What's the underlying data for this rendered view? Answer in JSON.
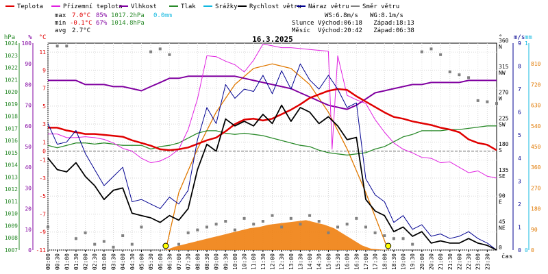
{
  "legend": [
    {
      "label": "Teplota",
      "color": "#e00000"
    },
    {
      "label": "Přízemní teplota",
      "color": "#e020e0"
    },
    {
      "label": "Vlhkost",
      "color": "#8000a0"
    },
    {
      "label": "Tlak",
      "color": "#2a8a2a"
    },
    {
      "label": "Srážky",
      "color": "#10b8e0"
    },
    {
      "label": "Rychlost větru",
      "color": "#000000"
    },
    {
      "label": "Náraz větru",
      "color": "#000090"
    },
    {
      "label": "Směr větru",
      "color": "#808080"
    }
  ],
  "stats": {
    "max": {
      "label": "max",
      "temp": "7.0°C",
      "hum": "85%",
      "press": "1017.2hPa",
      "rain": "0.0mm"
    },
    "min": {
      "label": "min",
      "temp": "-0.1°C",
      "hum": "67%",
      "press": "1014.8hPa"
    },
    "avg": {
      "label": "avg",
      "temp": "2.7°C"
    }
  },
  "info": {
    "ws": "WS:6.8m/s",
    "wg": "WG:8.1m/s",
    "sun_line": "Slunce Východ:06:18   Západ:18:13",
    "moon_line": "Měsíc  Východ:20:42   Západ:06:38"
  },
  "chart_data": {
    "type": "line",
    "title": "16.3.2025",
    "xlabel": "čas",
    "x_ticks": [
      "00:00",
      "00:30",
      "01:00",
      "01:30",
      "02:00",
      "02:30",
      "03:00",
      "03:30",
      "04:00",
      "04:30",
      "05:00",
      "05:30",
      "06:00",
      "06:30",
      "07:00",
      "07:30",
      "08:00",
      "08:30",
      "09:00",
      "09:30",
      "10:00",
      "10:30",
      "11:00",
      "11:30",
      "12:00",
      "12:30",
      "13:00",
      "13:30",
      "14:00",
      "14:30",
      "15:00",
      "15:30",
      "16:00",
      "16:30",
      "17:00",
      "17:30",
      "18:00",
      "18:30",
      "19:00",
      "19:30",
      "20:00",
      "20:30",
      "21:00",
      "21:30",
      "22:00",
      "22:30",
      "23:00",
      "23:30"
    ],
    "axes": {
      "pressure": {
        "label": "hPa",
        "color": "#2a8a2a",
        "range": [
          1007,
          1024
        ],
        "ticks": [
          "1024",
          "1023",
          "1022",
          "1021",
          "1020",
          "1019",
          "1018",
          "1017",
          "1016",
          "1015",
          "1014",
          "1013",
          "1012",
          "1011",
          "1010",
          "1009",
          "1008",
          "1007"
        ]
      },
      "humidity": {
        "label": "%",
        "color": "#8000a0",
        "range": [
          0,
          100
        ],
        "ticks": [
          "100",
          "90",
          "80",
          "70",
          "60",
          "50",
          "40",
          "30",
          "20",
          "10",
          "0"
        ]
      },
      "temperature": {
        "label": "°C",
        "color": "#e00000",
        "range": [
          -11,
          12
        ],
        "ticks": [
          "11",
          "9",
          "7",
          "5",
          "3",
          "1",
          "0",
          "-1",
          "-3",
          "-5",
          "-7",
          "-9",
          "-11"
        ]
      },
      "wind_direction": {
        "label": "°",
        "range": [
          0,
          360
        ],
        "ticks": [
          "360 N",
          "315 NW",
          "270 W",
          "225 SW",
          "180 S",
          "135 SE",
          "90 E",
          "45 NE",
          "0"
        ]
      },
      "wind_speed": {
        "label": "m/s",
        "color": "#000090",
        "range": [
          0,
          9
        ],
        "ticks": [
          "9",
          "8",
          "7",
          "6",
          "5",
          "4",
          "3",
          "2",
          "1",
          "0"
        ]
      },
      "rain": {
        "label": "mm",
        "color": "#10b8e0",
        "range": [
          0,
          1
        ],
        "ticks": [
          "1",
          "0"
        ]
      },
      "solar": {
        "color": "#e07800",
        "range": [
          0,
          900
        ],
        "ticks": [
          "810",
          "720",
          "630",
          "540",
          "450",
          "360",
          "270",
          "180",
          "90",
          "0"
        ]
      }
    },
    "series": [
      {
        "name": "Teplota",
        "color": "#e00000",
        "x": [
          0,
          0.5,
          1,
          1.5,
          2,
          2.5,
          3,
          3.5,
          4,
          4.5,
          5,
          5.5,
          6,
          6.5,
          7,
          7.5,
          8,
          8.5,
          9,
          9.5,
          10,
          10.5,
          11,
          11.5,
          12,
          12.5,
          13,
          13.5,
          14,
          14.5,
          15,
          15.5,
          16,
          16.5,
          17,
          17.5,
          18,
          18.5,
          19,
          19.5,
          20,
          20.5,
          21,
          21.5,
          22,
          22.5,
          23,
          23.5,
          24
        ],
        "y": [
          2.6,
          2.6,
          2.3,
          2.1,
          1.9,
          1.9,
          1.8,
          1.7,
          1.6,
          1.2,
          0.9,
          0.6,
          0.2,
          0.1,
          0.2,
          0.4,
          0.8,
          1.2,
          1.5,
          2.2,
          3.0,
          3.5,
          3.6,
          3.4,
          3.6,
          4.1,
          4.6,
          5.2,
          5.9,
          6.3,
          6.7,
          6.9,
          6.8,
          6.1,
          5.5,
          4.9,
          4.3,
          3.8,
          3.6,
          3.3,
          3.1,
          2.9,
          2.6,
          2.4,
          2.1,
          1.3,
          0.9,
          0.7,
          0.1
        ]
      },
      {
        "name": "Přízemní teplota",
        "color": "#e020e0",
        "x": [
          0,
          0.5,
          1,
          1.5,
          2,
          2.5,
          3,
          3.5,
          4,
          4.5,
          5,
          5.5,
          6,
          6.5,
          7,
          7.5,
          8,
          8.5,
          9,
          9.5,
          10,
          10.5,
          11,
          11.5,
          12,
          12.5,
          13,
          13.5,
          14,
          14.5,
          15,
          15.2,
          15.5,
          16,
          16.5,
          17,
          17.5,
          18,
          18.5,
          19,
          19.5,
          20,
          20.5,
          21,
          21.5,
          22,
          22.5,
          23,
          23.5,
          24
        ],
        "y": [
          1.9,
          1.9,
          1.5,
          1.5,
          1.6,
          1.5,
          1.3,
          0.9,
          0.3,
          0.0,
          -0.8,
          -1.3,
          -1.1,
          -0.6,
          0.2,
          2.4,
          5.8,
          10.6,
          10.5,
          10.0,
          9.6,
          8.8,
          10.1,
          11.9,
          11.7,
          11.5,
          11.5,
          11.4,
          11.3,
          11.2,
          11.1,
          0.2,
          10.6,
          6.2,
          5.7,
          5.3,
          3.5,
          2.1,
          0.9,
          0.2,
          -0.2,
          -0.7,
          -0.8,
          -1.3,
          -1.2,
          -1.8,
          -2.4,
          -2.2,
          -2.8,
          -3.0
        ]
      },
      {
        "name": "Vlhkost",
        "color": "#8000a0",
        "x": [
          0,
          0.5,
          1,
          1.5,
          2,
          2.5,
          3,
          3.5,
          4,
          4.5,
          5,
          5.5,
          6,
          6.5,
          7,
          7.5,
          8,
          8.5,
          9,
          9.5,
          10,
          10.5,
          11,
          11.5,
          12,
          12.5,
          13,
          13.5,
          14,
          14.5,
          15,
          15.5,
          16,
          16.5,
          17,
          17.5,
          18,
          18.5,
          19,
          19.5,
          20,
          20.5,
          21,
          21.5,
          22,
          22.5,
          23,
          23.5,
          24
        ],
        "y": [
          82,
          82,
          82,
          82,
          80,
          80,
          80,
          79,
          79,
          78,
          77,
          79,
          81,
          83,
          83,
          84,
          84,
          84,
          84,
          84,
          84,
          83,
          82,
          81,
          80,
          79,
          78,
          76,
          74,
          72,
          70,
          69,
          68,
          70,
          73,
          76,
          77,
          78,
          79,
          80,
          80,
          81,
          81,
          81,
          81,
          82,
          82,
          82,
          82
        ]
      },
      {
        "name": "Tlak",
        "color": "#2a8a2a",
        "x": [
          0,
          0.5,
          1,
          1.5,
          2,
          2.5,
          3,
          3.5,
          4,
          4.5,
          5,
          5.5,
          6,
          6.5,
          7,
          7.5,
          8,
          8.5,
          9,
          9.5,
          10,
          10.5,
          11,
          11.5,
          12,
          12.5,
          13,
          13.5,
          14,
          14.5,
          15,
          15.5,
          16,
          16.5,
          17,
          17.5,
          18,
          18.5,
          19,
          19.5,
          20,
          20.5,
          21,
          21.5,
          22,
          22.5,
          23,
          23.5,
          24
        ],
        "y": [
          1015.6,
          1015.4,
          1015.6,
          1015.8,
          1015.8,
          1015.7,
          1015.8,
          1015.7,
          1015.6,
          1015.6,
          1015.6,
          1015.3,
          1015.5,
          1015.6,
          1015.8,
          1016.2,
          1016.6,
          1016.8,
          1016.8,
          1016.6,
          1016.5,
          1016.6,
          1016.5,
          1016.4,
          1016.2,
          1016.0,
          1015.8,
          1015.6,
          1015.5,
          1015.2,
          1015.0,
          1014.9,
          1014.8,
          1014.9,
          1015.0,
          1015.3,
          1015.5,
          1015.9,
          1016.3,
          1016.5,
          1016.8,
          1016.8,
          1016.8,
          1016.9,
          1016.9,
          1017.0,
          1017.1,
          1017.2,
          1017.2
        ]
      },
      {
        "name": "Rychlost větru",
        "color": "#000000",
        "x": [
          0,
          0.5,
          1,
          1.5,
          2,
          2.5,
          3,
          3.5,
          4,
          4.5,
          5,
          5.5,
          6,
          6.5,
          7,
          7.5,
          8,
          8.5,
          9,
          9.5,
          10,
          10.5,
          11,
          11.5,
          12,
          12.5,
          13,
          13.5,
          14,
          14.5,
          15,
          15.5,
          16,
          16.5,
          17,
          17.5,
          18,
          18.5,
          19,
          19.5,
          20,
          20.5,
          21,
          21.5,
          22,
          22.5,
          23,
          23.5,
          24
        ],
        "y": [
          4.0,
          3.5,
          3.4,
          3.8,
          3.2,
          2.8,
          2.2,
          2.6,
          2.7,
          1.6,
          1.5,
          1.4,
          1.2,
          1.5,
          1.3,
          1.8,
          3.5,
          4.6,
          4.3,
          5.7,
          5.4,
          5.6,
          5.4,
          5.9,
          5.5,
          6.3,
          5.6,
          6.2,
          6.0,
          5.5,
          5.8,
          5.4,
          4.8,
          4.9,
          2.2,
          1.7,
          1.5,
          0.8,
          1.0,
          0.6,
          0.8,
          0.3,
          0.4,
          0.3,
          0.3,
          0.5,
          0.3,
          0.2,
          0.0
        ]
      },
      {
        "name": "Náraz větru",
        "color": "#000090",
        "x": [
          0,
          0.5,
          1,
          1.5,
          2,
          2.5,
          3,
          3.5,
          4,
          4.5,
          5,
          5.5,
          6,
          6.5,
          7,
          7.5,
          8,
          8.5,
          9,
          9.5,
          10,
          10.5,
          11,
          11.5,
          12,
          12.5,
          13,
          13.5,
          14,
          14.5,
          15,
          15.5,
          16,
          16.5,
          17,
          17.5,
          18,
          18.5,
          19,
          19.5,
          20,
          20.5,
          21,
          21.5,
          22,
          22.5,
          23,
          23.5,
          24
        ],
        "y": [
          5.5,
          4.6,
          4.7,
          5.2,
          4.2,
          3.5,
          2.8,
          3.2,
          3.6,
          2.1,
          2.2,
          2.0,
          1.8,
          2.3,
          2.0,
          2.6,
          4.8,
          6.2,
          5.5,
          7.2,
          6.6,
          7.0,
          6.9,
          7.6,
          6.8,
          7.8,
          7.0,
          8.1,
          7.4,
          7.0,
          7.6,
          7.0,
          6.2,
          6.4,
          3.1,
          2.4,
          2.1,
          1.2,
          1.5,
          0.9,
          1.1,
          0.6,
          0.7,
          0.5,
          0.6,
          0.8,
          0.5,
          0.3,
          0.0
        ]
      },
      {
        "name": "Směr větru",
        "color": "#808080",
        "x": [
          0,
          0.5,
          1,
          1.5,
          2,
          2.5,
          3,
          3.5,
          4,
          4.5,
          5,
          5.5,
          6,
          6.5,
          7,
          7.5,
          8,
          8.5,
          9,
          9.5,
          10,
          10.5,
          11,
          11.5,
          12,
          12.5,
          13,
          13.5,
          14,
          14.5,
          15,
          15.5,
          16,
          16.5,
          17,
          17.5,
          18,
          18.5,
          19,
          19.5,
          20,
          20.5,
          21,
          21.5,
          22,
          22.5,
          23,
          23.5,
          24
        ],
        "y": [
          40,
          355,
          355,
          20,
          30,
          10,
          15,
          5,
          25,
          10,
          40,
          345,
          350,
          340,
          10,
          30,
          35,
          40,
          45,
          50,
          35,
          55,
          45,
          50,
          60,
          40,
          55,
          45,
          60,
          50,
          30,
          40,
          45,
          55,
          40,
          30,
          25,
          20,
          20,
          10,
          345,
          350,
          340,
          310,
          305,
          300,
          260,
          258,
          255
        ]
      },
      {
        "name": "solar",
        "color": "#f08010",
        "x": [
          0,
          6.3,
          6.8,
          7.3,
          7.8,
          8.3,
          8.8,
          9.3,
          9.8,
          10.3,
          10.8,
          11.3,
          11.8,
          12.3,
          12.8,
          13.3,
          13.8,
          14.3,
          14.8,
          15.3,
          15.8,
          16.3,
          16.8,
          17.3,
          18.2,
          24
        ],
        "y": [
          0,
          0,
          15,
          25,
          35,
          45,
          55,
          65,
          75,
          85,
          95,
          100,
          110,
          115,
          120,
          125,
          130,
          120,
          110,
          95,
          70,
          45,
          20,
          5,
          0,
          0
        ]
      },
      {
        "name": "solar-clear",
        "color": "#e07800",
        "x": [
          6.3,
          7,
          8,
          9,
          10,
          11,
          12,
          13,
          14,
          15,
          16,
          17,
          18.2
        ],
        "y": [
          0,
          250,
          440,
          600,
          720,
          790,
          810,
          790,
          720,
          600,
          440,
          250,
          0
        ]
      }
    ],
    "markers": [
      {
        "label": "sunrise",
        "x": 6.3
      },
      {
        "label": "sunset",
        "x": 18.2
      }
    ]
  }
}
